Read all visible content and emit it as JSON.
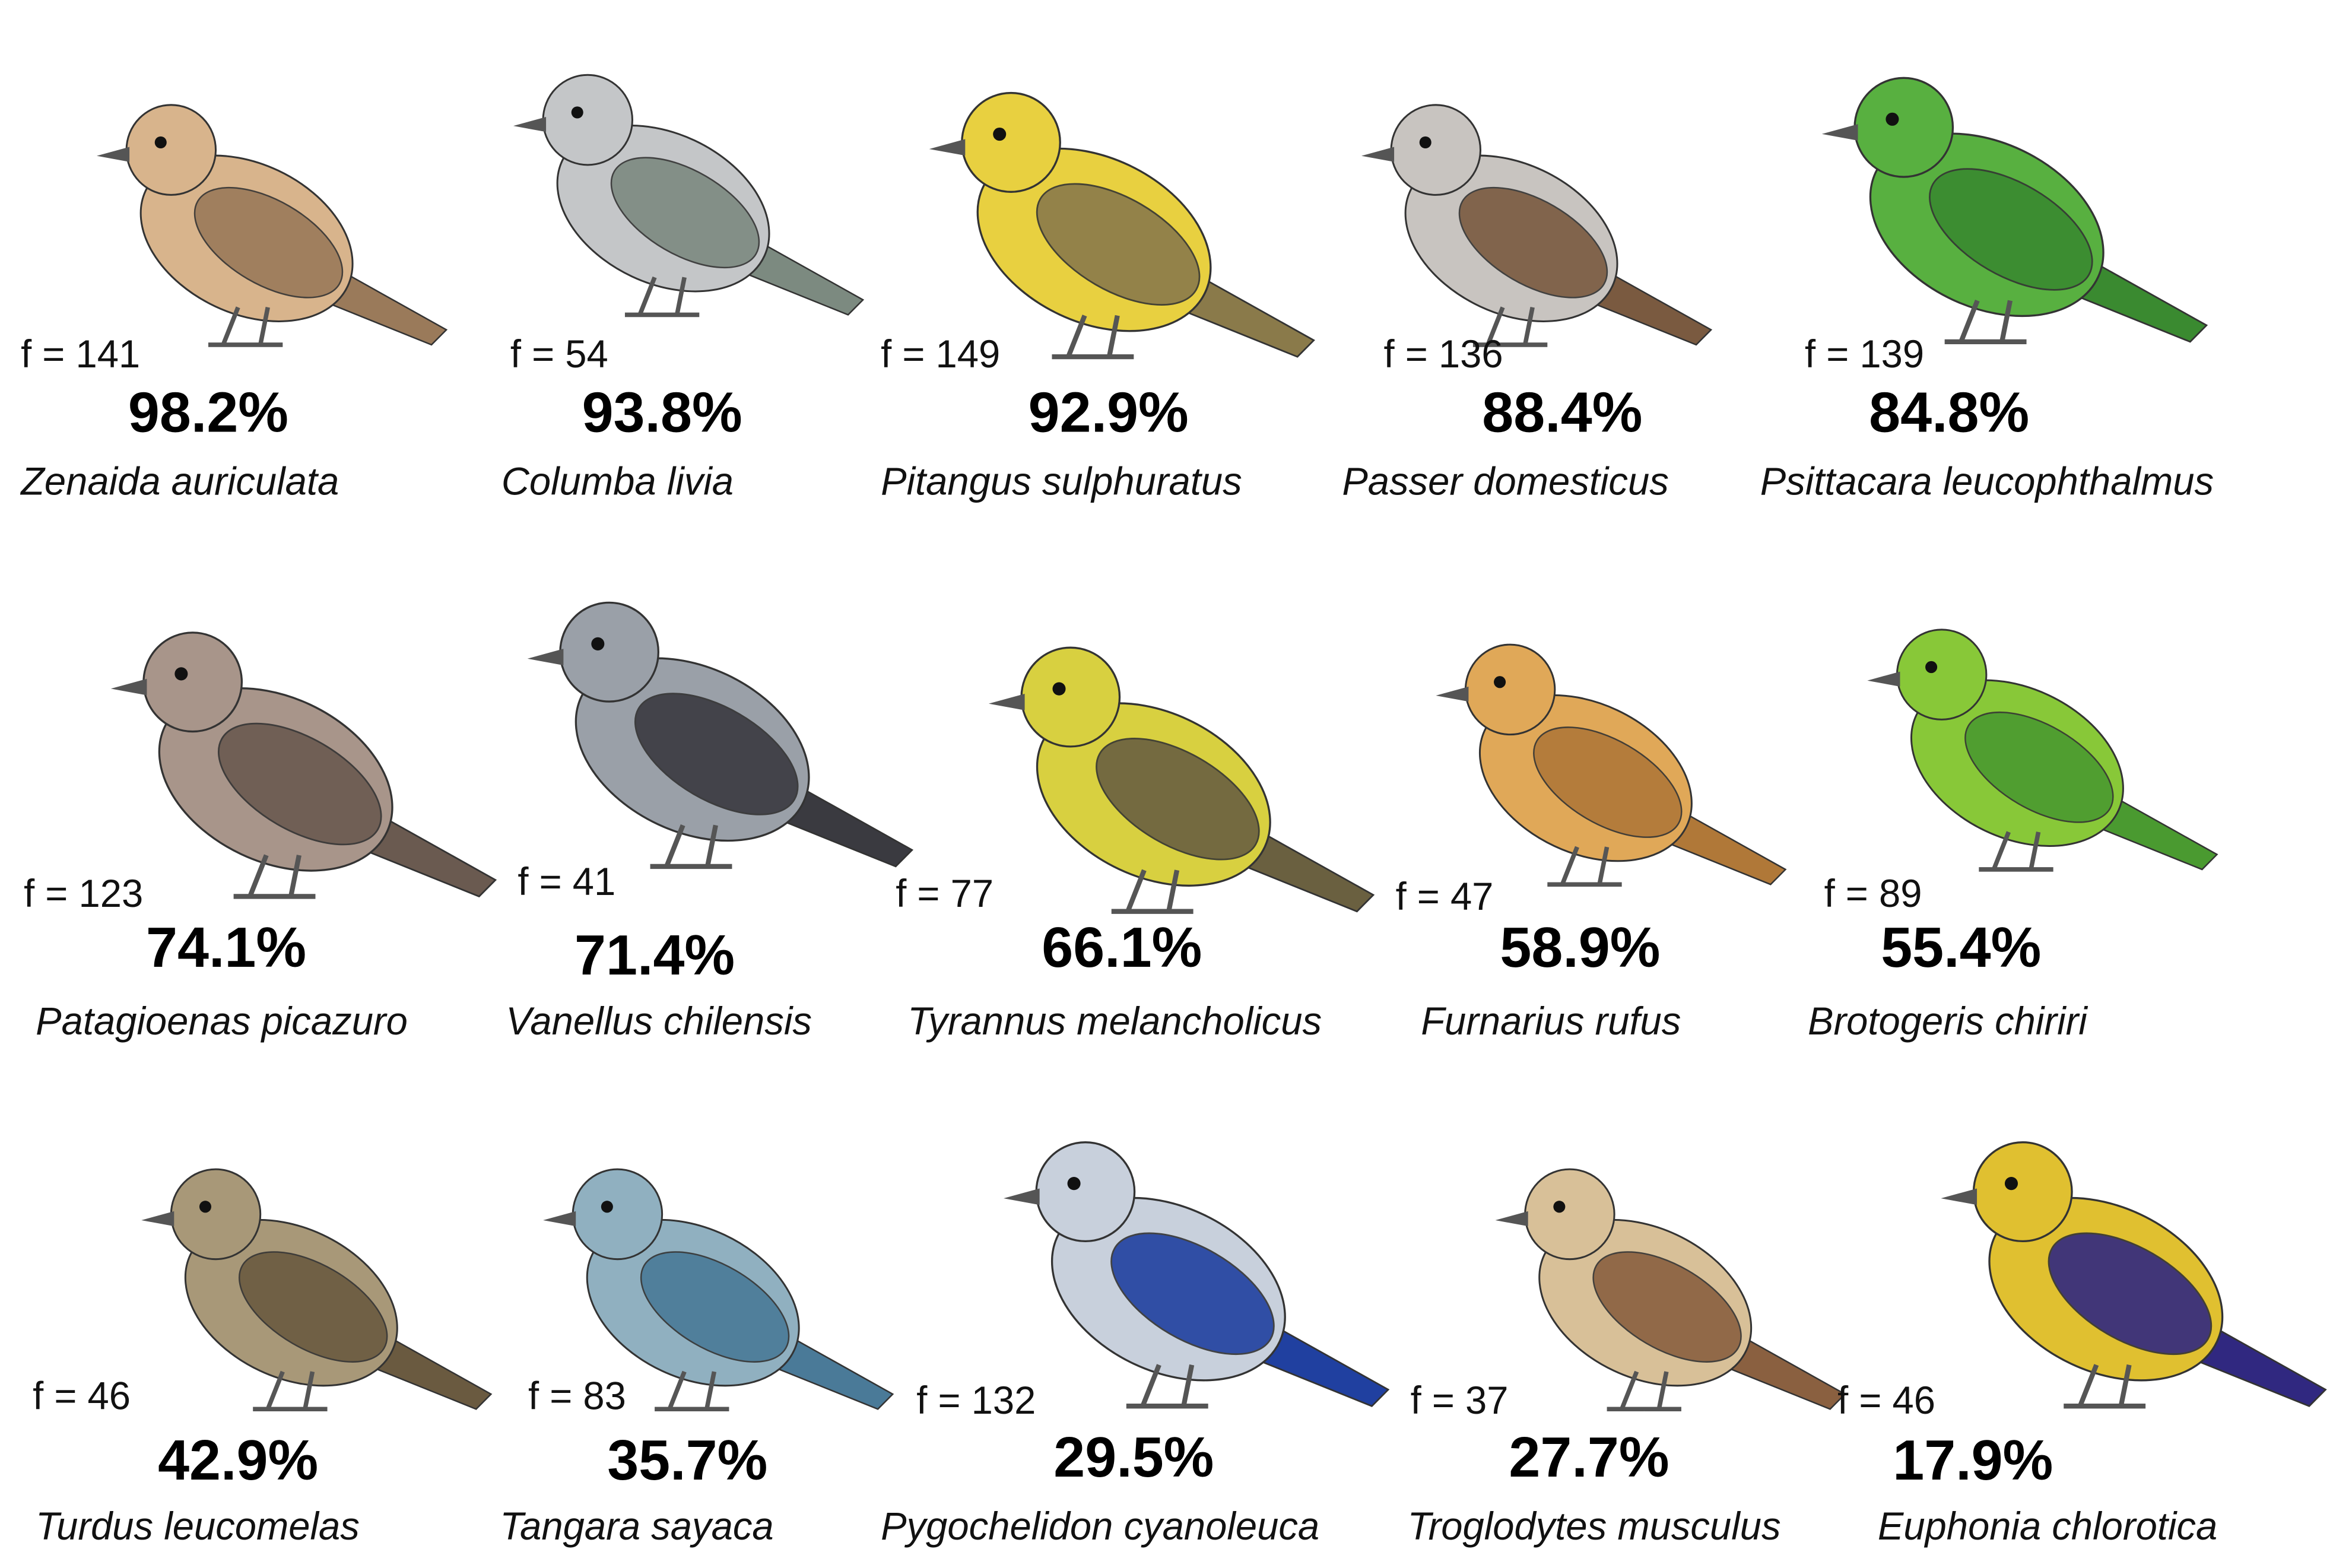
{
  "birds": [
    {
      "f": "f = 141",
      "percent": "98.2%",
      "name": "Zenaida auriculata"
    },
    {
      "f": "f = 54",
      "percent": "93.8%",
      "name": "Columba livia"
    },
    {
      "f": "f = 149",
      "percent": "92.9%",
      "name": "Pitangus sulphuratus"
    },
    {
      "f": "f = 136",
      "percent": "88.4%",
      "name": "Passer domesticus"
    },
    {
      "f": "f = 139",
      "percent": "84.8%",
      "name": "Psittacara leucophthalmus"
    },
    {
      "f": "f = 123",
      "percent": "74.1%",
      "name": "Patagioenas picazuro"
    },
    {
      "f": "f = 41",
      "percent": "71.4%",
      "name": "Vanellus chilensis"
    },
    {
      "f": "f = 77",
      "percent": "66.1%",
      "name": "Tyrannus melancholicus"
    },
    {
      "f": "f = 47",
      "percent": "58.9%",
      "name": "Furnarius rufus"
    },
    {
      "f": "f = 89",
      "percent": "55.4%",
      "name": "Brotogeris chiriri"
    },
    {
      "f": "f = 46",
      "percent": "42.9%",
      "name": "Turdus leucomelas"
    },
    {
      "f": "f = 83",
      "percent": "35.7%",
      "name": "Tangara sayaca"
    },
    {
      "f": "f = 132",
      "percent": "29.5%",
      "name": "Pygochelidon cyanoleuca"
    },
    {
      "f": "f = 37",
      "percent": "27.7%",
      "name": "Troglodytes musculus"
    },
    {
      "f": "f = 46",
      "percent": "17.9%",
      "name": "Euphonia chlorotica"
    }
  ]
}
